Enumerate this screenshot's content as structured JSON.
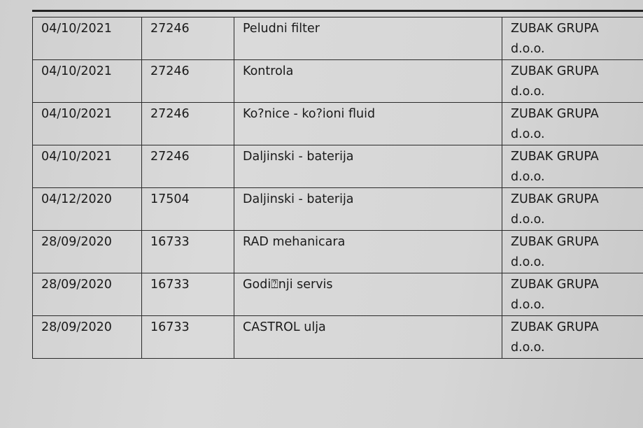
{
  "rows": [
    {
      "date": "04/10/2021",
      "number": "27246",
      "description": "Peludni filter",
      "company": "ZUBAK GRUPA d.o.o."
    },
    {
      "date": "04/10/2021",
      "number": "27246",
      "description": "Kontrola",
      "company": "ZUBAK GRUPA d.o.o."
    },
    {
      "date": "04/10/2021",
      "number": "27246",
      "description": "Ko?nice - ko?ioni fluid",
      "company": "ZUBAK GRUPA d.o.o."
    },
    {
      "date": "04/10/2021",
      "number": "27246",
      "description": "Daljinski - baterija",
      "company": "ZUBAK GRUPA d.o.o."
    },
    {
      "date": "04/12/2020",
      "number": "17504",
      "description": "Daljinski - baterija",
      "company": "ZUBAK GRUPA d.o.o."
    },
    {
      "date": "28/09/2020",
      "number": "16733",
      "description": "RAD mehanicara",
      "company": "ZUBAK GRUPA d.o.o."
    },
    {
      "date": "28/09/2020",
      "number": "16733",
      "description": "Godi⍰nji servis",
      "company": "ZUBAK GRUPA d.o.o."
    },
    {
      "date": "28/09/2020",
      "number": "16733",
      "description": "CASTROL ulja",
      "company": "ZUBAK GRUPA d.o.o."
    }
  ]
}
